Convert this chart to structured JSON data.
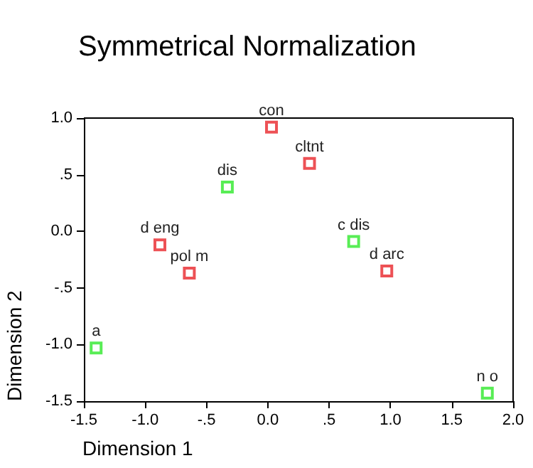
{
  "chart_data": {
    "type": "scatter",
    "title": "Symmetrical Normalization",
    "xlabel": "Dimension 1",
    "ylabel": "Dimension 2",
    "marker": "square",
    "grid": false,
    "xlim": [
      -1.5,
      2.0
    ],
    "xticks": [
      {
        "value": -1.5,
        "label": "-1.5"
      },
      {
        "value": -1.0,
        "label": "-1.0"
      },
      {
        "value": -0.5,
        "label": "-.5"
      },
      {
        "value": 0,
        "label": "0.0"
      },
      {
        "value": 0.5,
        "label": ".5"
      },
      {
        "value": 1.0,
        "label": "1.0"
      },
      {
        "value": 1.5,
        "label": "1.5"
      },
      {
        "value": 2.0,
        "label": "2.0"
      }
    ],
    "ylim": [
      -1.5,
      1.0
    ],
    "yticks": [
      {
        "value": -1.5,
        "label": "-1.5"
      },
      {
        "value": -1.0,
        "label": "-1.0"
      },
      {
        "value": -0.5,
        "label": "-.5"
      },
      {
        "value": 0,
        "label": "0.0"
      },
      {
        "value": 0.5,
        "label": ".5"
      },
      {
        "value": 1.0,
        "label": "1.0"
      }
    ],
    "series": [
      {
        "color": "#e8262a",
        "x": [
          0.03,
          0.34,
          -0.88,
          -0.64,
          0.97
        ],
        "values": [
          0.92,
          0.6,
          -0.12,
          -0.37,
          -0.35
        ]
      },
      {
        "color": "#2ee82a",
        "x": [
          -0.33,
          0.7,
          -1.4,
          1.79
        ],
        "values": [
          0.39,
          -0.09,
          -1.03,
          -1.43
        ]
      }
    ],
    "annotations": [
      {
        "text": "con",
        "x": 0.03,
        "y": 0.92
      },
      {
        "text": "cltnt",
        "x": 0.34,
        "y": 0.6
      },
      {
        "text": "d eng",
        "x": -0.88,
        "y": -0.12
      },
      {
        "text": "pol m",
        "x": -0.64,
        "y": -0.37
      },
      {
        "text": "d arc",
        "x": 0.97,
        "y": -0.35
      },
      {
        "text": "dis",
        "x": -0.33,
        "y": 0.39
      },
      {
        "text": "c dis",
        "x": 0.7,
        "y": -0.09
      },
      {
        "text": "a",
        "x": -1.4,
        "y": -1.03
      },
      {
        "text": "n o",
        "x": 1.79,
        "y": -1.43
      }
    ]
  }
}
